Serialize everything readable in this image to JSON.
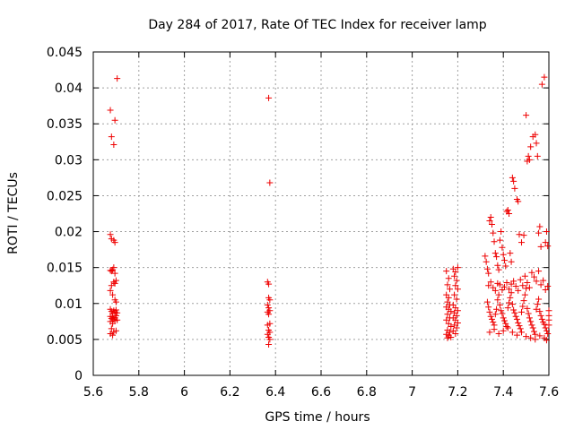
{
  "chart_data": {
    "type": "scatter",
    "title": "Day 284 of 2017, Rate Of TEC Index for receiver lamp",
    "xlabel": "GPS time / hours",
    "ylabel": "ROTI / TECUs",
    "xlim": [
      5.6,
      7.6
    ],
    "ylim": [
      0,
      0.045
    ],
    "xticks": [
      5.6,
      5.8,
      6.0,
      6.2,
      6.4,
      6.6,
      6.8,
      7.0,
      7.2,
      7.4,
      7.6
    ],
    "xtick_labels": [
      "5.6",
      "5.8",
      "6",
      "6.2",
      "6.4",
      "6.6",
      "6.8",
      "7",
      "7.2",
      "7.4",
      "7.6"
    ],
    "yticks": [
      0,
      0.005,
      0.01,
      0.015,
      0.02,
      0.025,
      0.03,
      0.035,
      0.04,
      0.045
    ],
    "ytick_labels": [
      "0",
      "0.005",
      "0.01",
      "0.015",
      "0.02",
      "0.025",
      "0.03",
      "0.035",
      "0.04",
      "0.045"
    ],
    "grid": true,
    "marker": "+",
    "color": "#ee0000",
    "series": [
      {
        "name": "ROTI",
        "points": [
          [
            5.675,
            0.0369
          ],
          [
            5.68,
            0.0332
          ],
          [
            5.69,
            0.0321
          ],
          [
            5.695,
            0.0355
          ],
          [
            5.705,
            0.0413
          ],
          [
            5.675,
            0.0196
          ],
          [
            5.68,
            0.019
          ],
          [
            5.69,
            0.0188
          ],
          [
            5.695,
            0.0185
          ],
          [
            5.675,
            0.0146
          ],
          [
            5.68,
            0.0145
          ],
          [
            5.685,
            0.0147
          ],
          [
            5.69,
            0.015
          ],
          [
            5.695,
            0.0142
          ],
          [
            5.68,
            0.0125
          ],
          [
            5.69,
            0.013
          ],
          [
            5.695,
            0.0128
          ],
          [
            5.7,
            0.0132
          ],
          [
            5.675,
            0.0118
          ],
          [
            5.685,
            0.0112
          ],
          [
            5.695,
            0.0105
          ],
          [
            5.7,
            0.0102
          ],
          [
            5.675,
            0.0092
          ],
          [
            5.68,
            0.0089
          ],
          [
            5.685,
            0.0086
          ],
          [
            5.69,
            0.009
          ],
          [
            5.695,
            0.0088
          ],
          [
            5.7,
            0.0091
          ],
          [
            5.705,
            0.0087
          ],
          [
            5.675,
            0.0082
          ],
          [
            5.68,
            0.0079
          ],
          [
            5.685,
            0.0081
          ],
          [
            5.69,
            0.0078
          ],
          [
            5.695,
            0.008
          ],
          [
            5.7,
            0.0083
          ],
          [
            5.675,
            0.0075
          ],
          [
            5.685,
            0.0072
          ],
          [
            5.695,
            0.0076
          ],
          [
            5.705,
            0.0077
          ],
          [
            5.68,
            0.0065
          ],
          [
            5.69,
            0.006
          ],
          [
            5.7,
            0.0062
          ],
          [
            5.675,
            0.0058
          ],
          [
            5.685,
            0.0056
          ],
          [
            6.37,
            0.0386
          ],
          [
            6.375,
            0.0268
          ],
          [
            6.365,
            0.013
          ],
          [
            6.37,
            0.0127
          ],
          [
            6.37,
            0.0108
          ],
          [
            6.375,
            0.0105
          ],
          [
            6.365,
            0.0098
          ],
          [
            6.37,
            0.0094
          ],
          [
            6.375,
            0.009
          ],
          [
            6.365,
            0.0088
          ],
          [
            6.37,
            0.0085
          ],
          [
            6.375,
            0.0072
          ],
          [
            6.365,
            0.007
          ],
          [
            6.37,
            0.0063
          ],
          [
            6.375,
            0.006
          ],
          [
            6.365,
            0.0057
          ],
          [
            6.37,
            0.0053
          ],
          [
            6.375,
            0.005
          ],
          [
            6.37,
            0.0043
          ],
          [
            7.15,
            0.0145
          ],
          [
            7.16,
            0.0135
          ],
          [
            7.155,
            0.0126
          ],
          [
            7.165,
            0.012
          ],
          [
            7.15,
            0.0112
          ],
          [
            7.16,
            0.0108
          ],
          [
            7.155,
            0.0102
          ],
          [
            7.165,
            0.0098
          ],
          [
            7.15,
            0.0095
          ],
          [
            7.16,
            0.0092
          ],
          [
            7.17,
            0.0089
          ],
          [
            7.155,
            0.0085
          ],
          [
            7.165,
            0.008
          ],
          [
            7.15,
            0.0077
          ],
          [
            7.16,
            0.0072
          ],
          [
            7.17,
            0.0068
          ],
          [
            7.155,
            0.0063
          ],
          [
            7.165,
            0.006
          ],
          [
            7.15,
            0.0057
          ],
          [
            7.16,
            0.0055
          ],
          [
            7.17,
            0.0053
          ],
          [
            7.155,
            0.0052
          ],
          [
            7.18,
            0.0148
          ],
          [
            7.19,
            0.0144
          ],
          [
            7.2,
            0.015
          ],
          [
            7.185,
            0.0138
          ],
          [
            7.195,
            0.0132
          ],
          [
            7.19,
            0.0125
          ],
          [
            7.2,
            0.012
          ],
          [
            7.185,
            0.0112
          ],
          [
            7.195,
            0.0106
          ],
          [
            7.18,
            0.0098
          ],
          [
            7.19,
            0.0094
          ],
          [
            7.2,
            0.009
          ],
          [
            7.185,
            0.0087
          ],
          [
            7.195,
            0.0083
          ],
          [
            7.18,
            0.008
          ],
          [
            7.19,
            0.0077
          ],
          [
            7.2,
            0.0073
          ],
          [
            7.185,
            0.007
          ],
          [
            7.195,
            0.0066
          ],
          [
            7.18,
            0.0062
          ],
          [
            7.19,
            0.0058
          ],
          [
            7.32,
            0.0166
          ],
          [
            7.325,
            0.0158
          ],
          [
            7.33,
            0.0148
          ],
          [
            7.335,
            0.0142
          ],
          [
            7.34,
            0.0215
          ],
          [
            7.345,
            0.022
          ],
          [
            7.35,
            0.021
          ],
          [
            7.355,
            0.0198
          ],
          [
            7.36,
            0.0186
          ],
          [
            7.365,
            0.017
          ],
          [
            7.37,
            0.0165
          ],
          [
            7.375,
            0.0153
          ],
          [
            7.38,
            0.0147
          ],
          [
            7.385,
            0.0188
          ],
          [
            7.39,
            0.02
          ],
          [
            7.395,
            0.0178
          ],
          [
            7.4,
            0.0168
          ],
          [
            7.405,
            0.016
          ],
          [
            7.41,
            0.0152
          ],
          [
            7.415,
            0.0228
          ],
          [
            7.42,
            0.023
          ],
          [
            7.425,
            0.0225
          ],
          [
            7.43,
            0.017
          ],
          [
            7.435,
            0.0158
          ],
          [
            7.44,
            0.0275
          ],
          [
            7.445,
            0.027
          ],
          [
            7.45,
            0.026
          ],
          [
            7.46,
            0.0245
          ],
          [
            7.465,
            0.0242
          ],
          [
            7.47,
            0.0196
          ],
          [
            7.48,
            0.0185
          ],
          [
            7.49,
            0.0195
          ],
          [
            7.5,
            0.0362
          ],
          [
            7.505,
            0.0298
          ],
          [
            7.51,
            0.0305
          ],
          [
            7.515,
            0.03
          ],
          [
            7.52,
            0.0318
          ],
          [
            7.53,
            0.0332
          ],
          [
            7.54,
            0.0335
          ],
          [
            7.545,
            0.0323
          ],
          [
            7.55,
            0.0305
          ],
          [
            7.555,
            0.0198
          ],
          [
            7.56,
            0.0207
          ],
          [
            7.565,
            0.0179
          ],
          [
            7.57,
            0.0405
          ],
          [
            7.58,
            0.0415
          ],
          [
            7.585,
            0.0185
          ],
          [
            7.59,
            0.02
          ],
          [
            7.595,
            0.018
          ],
          [
            7.33,
            0.0102
          ],
          [
            7.335,
            0.0095
          ],
          [
            7.34,
            0.0088
          ],
          [
            7.345,
            0.0082
          ],
          [
            7.35,
            0.0078
          ],
          [
            7.355,
            0.0074
          ],
          [
            7.36,
            0.007
          ],
          [
            7.365,
            0.0085
          ],
          [
            7.37,
            0.0092
          ],
          [
            7.375,
            0.0105
          ],
          [
            7.38,
            0.0112
          ],
          [
            7.385,
            0.0098
          ],
          [
            7.39,
            0.009
          ],
          [
            7.395,
            0.0086
          ],
          [
            7.4,
            0.008
          ],
          [
            7.405,
            0.0076
          ],
          [
            7.41,
            0.0072
          ],
          [
            7.415,
            0.0068
          ],
          [
            7.42,
            0.0094
          ],
          [
            7.425,
            0.0101
          ],
          [
            7.43,
            0.0108
          ],
          [
            7.435,
            0.0115
          ],
          [
            7.44,
            0.0099
          ],
          [
            7.445,
            0.0091
          ],
          [
            7.45,
            0.0087
          ],
          [
            7.455,
            0.0082
          ],
          [
            7.46,
            0.0078
          ],
          [
            7.465,
            0.0073
          ],
          [
            7.47,
            0.0069
          ],
          [
            7.475,
            0.0065
          ],
          [
            7.48,
            0.0088
          ],
          [
            7.485,
            0.0096
          ],
          [
            7.49,
            0.0104
          ],
          [
            7.495,
            0.0112
          ],
          [
            7.5,
            0.0121
          ],
          [
            7.505,
            0.0093
          ],
          [
            7.51,
            0.0086
          ],
          [
            7.515,
            0.008
          ],
          [
            7.52,
            0.0075
          ],
          [
            7.525,
            0.007
          ],
          [
            7.53,
            0.0066
          ],
          [
            7.535,
            0.0061
          ],
          [
            7.54,
            0.0057
          ],
          [
            7.545,
            0.0092
          ],
          [
            7.55,
            0.0099
          ],
          [
            7.555,
            0.0106
          ],
          [
            7.56,
            0.0089
          ],
          [
            7.565,
            0.0083
          ],
          [
            7.57,
            0.0078
          ],
          [
            7.575,
            0.0074
          ],
          [
            7.58,
            0.0071
          ],
          [
            7.585,
            0.0066
          ],
          [
            7.59,
            0.0062
          ],
          [
            7.595,
            0.0058
          ],
          [
            7.6,
            0.009
          ],
          [
            7.6,
            0.0083
          ],
          [
            7.6,
            0.0077
          ],
          [
            7.6,
            0.007
          ],
          [
            7.335,
            0.0125
          ],
          [
            7.345,
            0.013
          ],
          [
            7.355,
            0.0122
          ],
          [
            7.365,
            0.0118
          ],
          [
            7.375,
            0.0128
          ],
          [
            7.385,
            0.0126
          ],
          [
            7.395,
            0.0119
          ],
          [
            7.405,
            0.0123
          ],
          [
            7.415,
            0.0129
          ],
          [
            7.425,
            0.012
          ],
          [
            7.435,
            0.0127
          ],
          [
            7.445,
            0.0131
          ],
          [
            7.455,
            0.0124
          ],
          [
            7.465,
            0.0118
          ],
          [
            7.475,
            0.0133
          ],
          [
            7.485,
            0.0125
          ],
          [
            7.495,
            0.0138
          ],
          [
            7.505,
            0.0129
          ],
          [
            7.515,
            0.0122
          ],
          [
            7.525,
            0.0143
          ],
          [
            7.535,
            0.0137
          ],
          [
            7.545,
            0.0131
          ],
          [
            7.555,
            0.0145
          ],
          [
            7.565,
            0.0126
          ],
          [
            7.575,
            0.0132
          ],
          [
            7.585,
            0.0119
          ],
          [
            7.595,
            0.0124
          ],
          [
            7.34,
            0.006
          ],
          [
            7.36,
            0.0064
          ],
          [
            7.38,
            0.0058
          ],
          [
            7.4,
            0.0062
          ],
          [
            7.42,
            0.0066
          ],
          [
            7.44,
            0.006
          ],
          [
            7.46,
            0.0056
          ],
          [
            7.48,
            0.006
          ],
          [
            7.5,
            0.0054
          ],
          [
            7.52,
            0.0052
          ],
          [
            7.54,
            0.005
          ],
          [
            7.56,
            0.0055
          ],
          [
            7.58,
            0.0052
          ],
          [
            7.59,
            0.0049
          ]
        ]
      }
    ]
  }
}
